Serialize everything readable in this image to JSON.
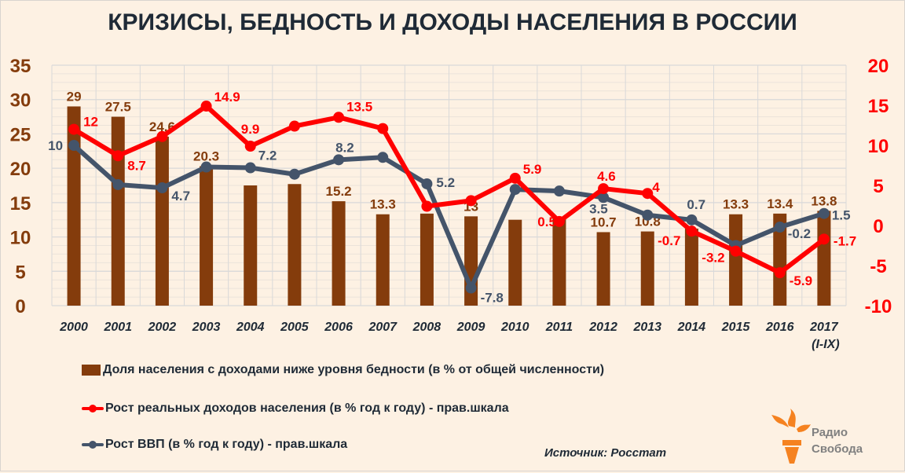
{
  "title": "КРИЗИСЫ, БЕДНОСТЬ И ДОХОДЫ НАСЕЛЕНИЯ В РОССИИ",
  "colors": {
    "background": "#fdf1e3",
    "bar": "#843c0c",
    "income_line": "#ff0000",
    "gdp_line": "#44546a",
    "left_axis": "#843c0c",
    "right_axis": "#ff0000",
    "grid": "#d9d9d9",
    "text_dark": "#1f2a36",
    "logo_orange": "#f58220",
    "logo_text": "#808080"
  },
  "legend": {
    "bar_label": "Доля населения с доходами ниже уровня бедности (в % от общей численности)",
    "income_label": "Рост реальных доходов населения (в % год к году) - прав.шкала",
    "gdp_label": "Рост ВВП (в % год к году) - прав.шкала"
  },
  "source": "Источник: Росстат",
  "logo": {
    "line1": "Радио",
    "line2": "Свобода",
    "icon": "torch-icon"
  },
  "chart_data": {
    "type": "bar+line",
    "title": "КРИЗИСЫ, БЕДНОСТЬ И ДОХОДЫ НАСЕЛЕНИЯ В РОССИИ",
    "categories": [
      "2000",
      "2001",
      "2002",
      "2003",
      "2004",
      "2005",
      "2006",
      "2007",
      "2008",
      "2009",
      "2010",
      "2011",
      "2012",
      "2013",
      "2014",
      "2015",
      "2016",
      "2017"
    ],
    "category_sublabels": {
      "17": "(I-IX)"
    },
    "left_axis": {
      "min": 0,
      "max": 35,
      "ticks": [
        0,
        5,
        10,
        15,
        20,
        25,
        30,
        35
      ]
    },
    "right_axis": {
      "min": -10,
      "max": 20,
      "ticks": [
        -10,
        -5,
        0,
        5,
        10,
        15,
        20
      ]
    },
    "grid": true,
    "legend_position": "bottom",
    "series": [
      {
        "name": "Доля населения с доходами ниже уровня бедности (в % от общей численности)",
        "type": "bar",
        "axis": "left",
        "values": [
          29,
          27.5,
          24.6,
          20.3,
          17.5,
          17.7,
          15.2,
          13.3,
          13.4,
          13,
          12.5,
          12.7,
          10.7,
          10.8,
          11.2,
          13.3,
          13.4,
          13.8
        ],
        "labels": [
          "29",
          "27.5",
          "24.6",
          "20.3",
          "",
          "",
          "15.2",
          "13.3",
          "",
          "13",
          "",
          "",
          "10.7",
          "10.8",
          "",
          "13.3",
          "13.4",
          "13.8"
        ]
      },
      {
        "name": "Рост реальных доходов населения (в % год к году) - прав.шкала",
        "type": "line",
        "axis": "right",
        "values": [
          12,
          8.7,
          11.1,
          14.9,
          9.9,
          12.4,
          13.5,
          12.1,
          2.4,
          3.1,
          5.9,
          0.5,
          4.6,
          4,
          -0.7,
          -3.2,
          -5.9,
          -1.7
        ],
        "labels": [
          "12",
          "8.7",
          "",
          "14.9",
          "9.9",
          "",
          "13.5",
          "",
          "",
          "",
          "5.9",
          "0.5",
          "4.6",
          "4",
          "-0.7",
          "-3.2",
          "-5.9",
          "-1.7"
        ]
      },
      {
        "name": "Рост ВВП (в % год к году) - прав.шкала",
        "type": "line",
        "axis": "right",
        "values": [
          10,
          5.1,
          4.7,
          7.3,
          7.2,
          6.4,
          8.2,
          8.5,
          5.2,
          -7.8,
          4.5,
          4.3,
          3.5,
          1.3,
          0.7,
          -2.5,
          -0.2,
          1.5
        ],
        "labels": [
          "10",
          "",
          "4.7",
          "",
          "7.2",
          "",
          "8.2",
          "",
          "5.2",
          "-7.8",
          "",
          "",
          "3.5",
          "",
          "0.7",
          "",
          "-0.2",
          "1.5"
        ]
      }
    ]
  }
}
